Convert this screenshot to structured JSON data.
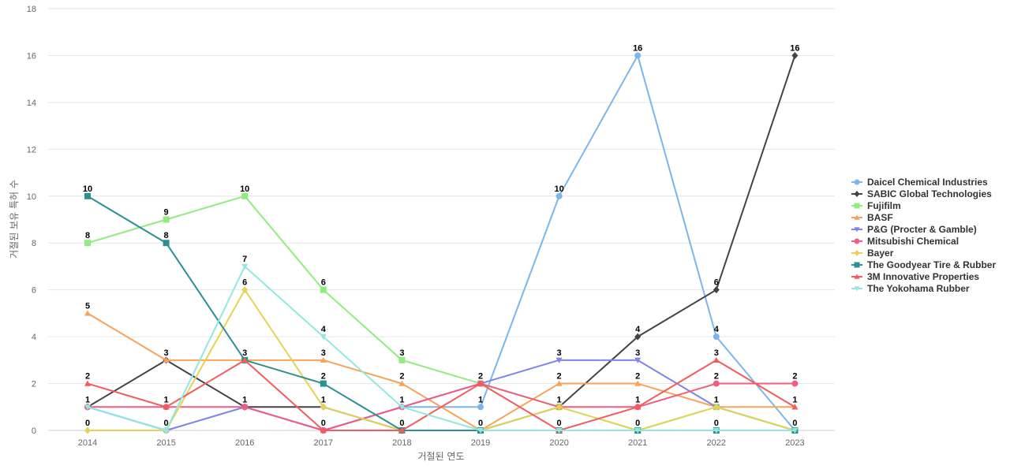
{
  "chart_data": {
    "type": "line",
    "xlabel": "거절된 연도",
    "ylabel": "거절된 보유 특허 수",
    "x": [
      "2014",
      "2015",
      "2016",
      "2017",
      "2018",
      "2019",
      "2020",
      "2021",
      "2022",
      "2023"
    ],
    "ylim": [
      0,
      18
    ],
    "yticks": [
      0,
      2,
      4,
      6,
      8,
      10,
      12,
      14,
      16,
      18
    ],
    "grid": true,
    "legend_position": "right",
    "series": [
      {
        "name": "Daicel Chemical Industries",
        "color": "#7cb5ec",
        "marker": "circle",
        "values": [
          1,
          0,
          1,
          0,
          1,
          1,
          10,
          16,
          4,
          0
        ]
      },
      {
        "name": "SABIC Global Technologies",
        "color": "#434348",
        "marker": "diamond",
        "values": [
          1,
          3,
          1,
          1,
          0,
          0,
          1,
          4,
          6,
          16
        ]
      },
      {
        "name": "Fujifilm",
        "color": "#90ed7d",
        "marker": "square",
        "values": [
          8,
          9,
          10,
          6,
          3,
          2,
          1,
          0,
          1,
          0
        ]
      },
      {
        "name": "BASF",
        "color": "#f7a35c",
        "marker": "triangle",
        "values": [
          5,
          3,
          3,
          3,
          2,
          0,
          2,
          2,
          1,
          1
        ]
      },
      {
        "name": "P&G (Procter & Gamble)",
        "color": "#8085e9",
        "marker": "triangle-down",
        "values": [
          1,
          0,
          1,
          0,
          1,
          2,
          3,
          3,
          1,
          0
        ]
      },
      {
        "name": "Mitsubishi Chemical",
        "color": "#f15c80",
        "marker": "circle",
        "values": [
          1,
          1,
          1,
          0,
          1,
          2,
          1,
          1,
          2,
          2
        ]
      },
      {
        "name": "Bayer",
        "color": "#e4d354",
        "marker": "diamond",
        "values": [
          0,
          0,
          6,
          1,
          0,
          0,
          1,
          0,
          1,
          0
        ]
      },
      {
        "name": "The Goodyear Tire & Rubber",
        "color": "#2b908f",
        "marker": "square",
        "values": [
          10,
          8,
          3,
          2,
          0,
          0,
          0,
          0,
          0,
          0
        ]
      },
      {
        "name": "3M Innovative Properties",
        "color": "#f45b5b",
        "marker": "triangle",
        "values": [
          2,
          1,
          3,
          0,
          0,
          2,
          0,
          1,
          3,
          1
        ]
      },
      {
        "name": "The Yokohama Rubber",
        "color": "#91e8e1",
        "marker": "triangle-down",
        "values": [
          1,
          0,
          7,
          4,
          1,
          0,
          0,
          0,
          0,
          0
        ]
      }
    ],
    "data_labels": [
      {
        "x": "2014",
        "value": 10,
        "series": "The Goodyear Tire & Rubber"
      },
      {
        "x": "2014",
        "value": 8,
        "series": "Fujifilm"
      },
      {
        "x": "2014",
        "value": 5,
        "series": "BASF"
      },
      {
        "x": "2014",
        "value": 2,
        "series": "3M Innovative Properties"
      },
      {
        "x": "2014",
        "value": 1,
        "series": "Daicel Chemical Industries"
      },
      {
        "x": "2014",
        "value": 0,
        "series": "Bayer"
      },
      {
        "x": "2015",
        "value": 9,
        "series": "Fujifilm"
      },
      {
        "x": "2015",
        "value": 8,
        "series": "The Goodyear Tire & Rubber"
      },
      {
        "x": "2015",
        "value": 3,
        "series": "SABIC Global Technologies"
      },
      {
        "x": "2015",
        "value": 1,
        "series": "Mitsubishi Chemical"
      },
      {
        "x": "2015",
        "value": 0,
        "series": "Daicel Chemical Industries"
      },
      {
        "x": "2016",
        "value": 10,
        "series": "Fujifilm"
      },
      {
        "x": "2016",
        "value": 7,
        "series": "The Yokohama Rubber"
      },
      {
        "x": "2016",
        "value": 6,
        "series": "Bayer"
      },
      {
        "x": "2016",
        "value": 3,
        "series": "The Goodyear Tire & Rubber"
      },
      {
        "x": "2016",
        "value": 1,
        "series": "Mitsubishi Chemical"
      },
      {
        "x": "2017",
        "value": 6,
        "series": "Fujifilm"
      },
      {
        "x": "2017",
        "value": 4,
        "series": "The Yokohama Rubber"
      },
      {
        "x": "2017",
        "value": 3,
        "series": "BASF"
      },
      {
        "x": "2017",
        "value": 2,
        "series": "The Goodyear Tire & Rubber"
      },
      {
        "x": "2017",
        "value": 1,
        "series": "Bayer"
      },
      {
        "x": "2017",
        "value": 0,
        "series": "Daicel Chemical Industries"
      },
      {
        "x": "2018",
        "value": 3,
        "series": "Fujifilm"
      },
      {
        "x": "2018",
        "value": 2,
        "series": "BASF"
      },
      {
        "x": "2018",
        "value": 1,
        "series": "Daicel Chemical Industries"
      },
      {
        "x": "2018",
        "value": 0,
        "series": "SABIC Global Technologies"
      },
      {
        "x": "2019",
        "value": 2,
        "series": "Fujifilm"
      },
      {
        "x": "2019",
        "value": 1,
        "series": "Daicel Chemical Industries"
      },
      {
        "x": "2019",
        "value": 0,
        "series": "BASF"
      },
      {
        "x": "2020",
        "value": 10,
        "series": "Daicel Chemical Industries"
      },
      {
        "x": "2020",
        "value": 3,
        "series": "P&G (Procter & Gamble)"
      },
      {
        "x": "2020",
        "value": 2,
        "series": "BASF"
      },
      {
        "x": "2020",
        "value": 1,
        "series": "Mitsubishi Chemical"
      },
      {
        "x": "2020",
        "value": 0,
        "series": "3M Innovative Properties"
      },
      {
        "x": "2021",
        "value": 16,
        "series": "Daicel Chemical Industries"
      },
      {
        "x": "2021",
        "value": 4,
        "series": "SABIC Global Technologies"
      },
      {
        "x": "2021",
        "value": 3,
        "series": "P&G (Procter & Gamble)"
      },
      {
        "x": "2021",
        "value": 2,
        "series": "BASF"
      },
      {
        "x": "2021",
        "value": 1,
        "series": "Mitsubishi Chemical"
      },
      {
        "x": "2021",
        "value": 0,
        "series": "The Yokohama Rubber"
      },
      {
        "x": "2022",
        "value": 6,
        "series": "SABIC Global Technologies"
      },
      {
        "x": "2022",
        "value": 4,
        "series": "Daicel Chemical Industries"
      },
      {
        "x": "2022",
        "value": 3,
        "series": "3M Innovative Properties"
      },
      {
        "x": "2022",
        "value": 2,
        "series": "Mitsubishi Chemical"
      },
      {
        "x": "2022",
        "value": 1,
        "series": "Bayer"
      },
      {
        "x": "2022",
        "value": 0,
        "series": "The Goodyear Tire & Rubber"
      },
      {
        "x": "2023",
        "value": 16,
        "series": "SABIC Global Technologies"
      },
      {
        "x": "2023",
        "value": 2,
        "series": "Mitsubishi Chemical"
      },
      {
        "x": "2023",
        "value": 1,
        "series": "3M Innovative Properties"
      },
      {
        "x": "2023",
        "value": 0,
        "series": "Daicel Chemical Industries"
      }
    ]
  }
}
